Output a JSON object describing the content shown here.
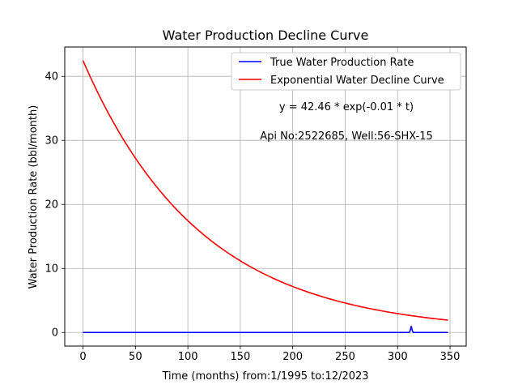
{
  "chart_data": {
    "type": "line",
    "title": "Water Production Decline Curve",
    "xlabel": "Time (months) from:1/1995 to:12/2023",
    "ylabel": "Water Production Rate (bbl/month)",
    "xlim": [
      -17.4,
      365.4
    ],
    "ylim": [
      -2.12,
      44.58
    ],
    "xticks": [
      0,
      50,
      100,
      150,
      200,
      250,
      300,
      350
    ],
    "yticks": [
      0,
      10,
      20,
      30,
      40
    ],
    "grid": true,
    "legend_position": "top-right",
    "series": [
      {
        "name": "True Water Production Rate",
        "color": "#0000ff",
        "x": [
          0,
          300,
          311,
          312,
          313,
          314,
          315,
          348
        ],
        "y": [
          0,
          0,
          0,
          0.3,
          1.0,
          0.3,
          0,
          0
        ]
      },
      {
        "name": "Exponential Water Decline Curve",
        "color": "#ff0000",
        "model": {
          "a": 42.46,
          "b": 0.00889,
          "x_start": 0,
          "x_end": 348
        }
      }
    ],
    "annotations": [
      "y = 42.46 * exp(-0.01 * t)",
      "Api No:2522685, Well:56-SHX-15"
    ]
  }
}
